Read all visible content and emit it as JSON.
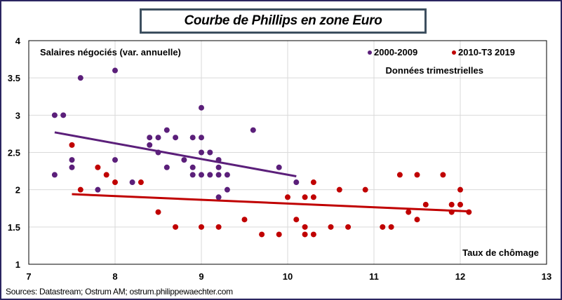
{
  "chart_data": {
    "type": "scatter",
    "title": "Courbe de Phillips en zone Euro",
    "subtitle": "Données trimestrielles",
    "xlabel": "Taux de chômage",
    "ylabel": "Salaires négociés (var. annuelle)",
    "xlim": [
      7,
      13
    ],
    "ylim": [
      1,
      4
    ],
    "x_ticks": [
      "7",
      "8",
      "9",
      "10",
      "11",
      "12",
      "13"
    ],
    "y_ticks": [
      "1",
      "1.5",
      "2",
      "2.5",
      "3",
      "3.5",
      "4"
    ],
    "x_tick_values": [
      7,
      8,
      9,
      10,
      11,
      12,
      13
    ],
    "y_tick_values": [
      1,
      1.5,
      2,
      2.5,
      3,
      3.5,
      4
    ],
    "grid": true,
    "legend_position": "top-right",
    "series": [
      {
        "name": "2000-2009",
        "color": "#5b1f7a",
        "points": [
          [
            7.3,
            3.0
          ],
          [
            7.4,
            3.0
          ],
          [
            7.5,
            2.4
          ],
          [
            7.5,
            2.3
          ],
          [
            7.3,
            2.2
          ],
          [
            7.8,
            2.0
          ],
          [
            7.6,
            3.5
          ],
          [
            8.0,
            3.6
          ],
          [
            8.0,
            2.4
          ],
          [
            8.2,
            2.1
          ],
          [
            8.4,
            2.7
          ],
          [
            8.4,
            2.6
          ],
          [
            8.5,
            2.7
          ],
          [
            8.5,
            2.5
          ],
          [
            8.6,
            2.8
          ],
          [
            8.6,
            2.3
          ],
          [
            8.7,
            2.7
          ],
          [
            8.8,
            2.4
          ],
          [
            8.9,
            2.7
          ],
          [
            8.9,
            2.3
          ],
          [
            8.9,
            2.2
          ],
          [
            9.0,
            3.1
          ],
          [
            9.0,
            2.7
          ],
          [
            9.0,
            2.5
          ],
          [
            9.0,
            2.2
          ],
          [
            9.1,
            2.5
          ],
          [
            9.1,
            2.2
          ],
          [
            9.2,
            2.4
          ],
          [
            9.2,
            2.3
          ],
          [
            9.2,
            2.2
          ],
          [
            9.2,
            1.9
          ],
          [
            9.3,
            2.2
          ],
          [
            9.3,
            2.0
          ],
          [
            9.6,
            2.8
          ],
          [
            9.9,
            2.3
          ],
          [
            10.1,
            2.1
          ]
        ],
        "trendline": [
          [
            7.3,
            2.77
          ],
          [
            10.1,
            2.18
          ]
        ]
      },
      {
        "name": "2010-T3 2019",
        "color": "#c00000",
        "points": [
          [
            7.5,
            2.6
          ],
          [
            7.8,
            2.3
          ],
          [
            7.9,
            2.2
          ],
          [
            8.0,
            2.1
          ],
          [
            7.6,
            2.0
          ],
          [
            8.3,
            2.1
          ],
          [
            8.5,
            1.7
          ],
          [
            8.7,
            1.5
          ],
          [
            9.0,
            1.5
          ],
          [
            9.2,
            1.5
          ],
          [
            9.5,
            1.6
          ],
          [
            9.7,
            1.4
          ],
          [
            9.9,
            1.4
          ],
          [
            10.0,
            1.9
          ],
          [
            10.1,
            1.6
          ],
          [
            10.2,
            1.9
          ],
          [
            10.2,
            1.5
          ],
          [
            10.2,
            1.4
          ],
          [
            10.3,
            2.1
          ],
          [
            10.3,
            1.9
          ],
          [
            10.3,
            1.4
          ],
          [
            10.5,
            1.5
          ],
          [
            10.6,
            2.0
          ],
          [
            10.7,
            1.5
          ],
          [
            10.9,
            2.0
          ],
          [
            11.1,
            1.5
          ],
          [
            11.2,
            1.5
          ],
          [
            11.3,
            2.2
          ],
          [
            11.4,
            1.7
          ],
          [
            11.5,
            2.2
          ],
          [
            11.5,
            1.6
          ],
          [
            11.6,
            1.8
          ],
          [
            11.8,
            2.2
          ],
          [
            11.9,
            1.8
          ],
          [
            11.9,
            1.7
          ],
          [
            12.0,
            2.0
          ],
          [
            12.0,
            1.8
          ],
          [
            12.1,
            1.7
          ]
        ],
        "trendline": [
          [
            7.5,
            1.94
          ],
          [
            12.1,
            1.71
          ]
        ]
      }
    ],
    "source": "Sources: Datastream; Ostrum AM;  ostrum.philippewaechter.com"
  }
}
